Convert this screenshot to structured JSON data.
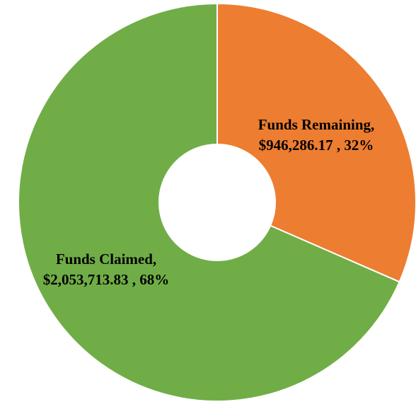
{
  "chart_data": {
    "type": "donut",
    "categories": [
      "Funds Remaining,",
      "Funds Claimed,"
    ],
    "values": [
      946286.17,
      2053713.83
    ],
    "value_labels": [
      "$946,286.17 , 32%",
      "$2,053,713.83 , 68%"
    ],
    "colors": [
      "#ED7D31",
      "#70AD47"
    ]
  }
}
